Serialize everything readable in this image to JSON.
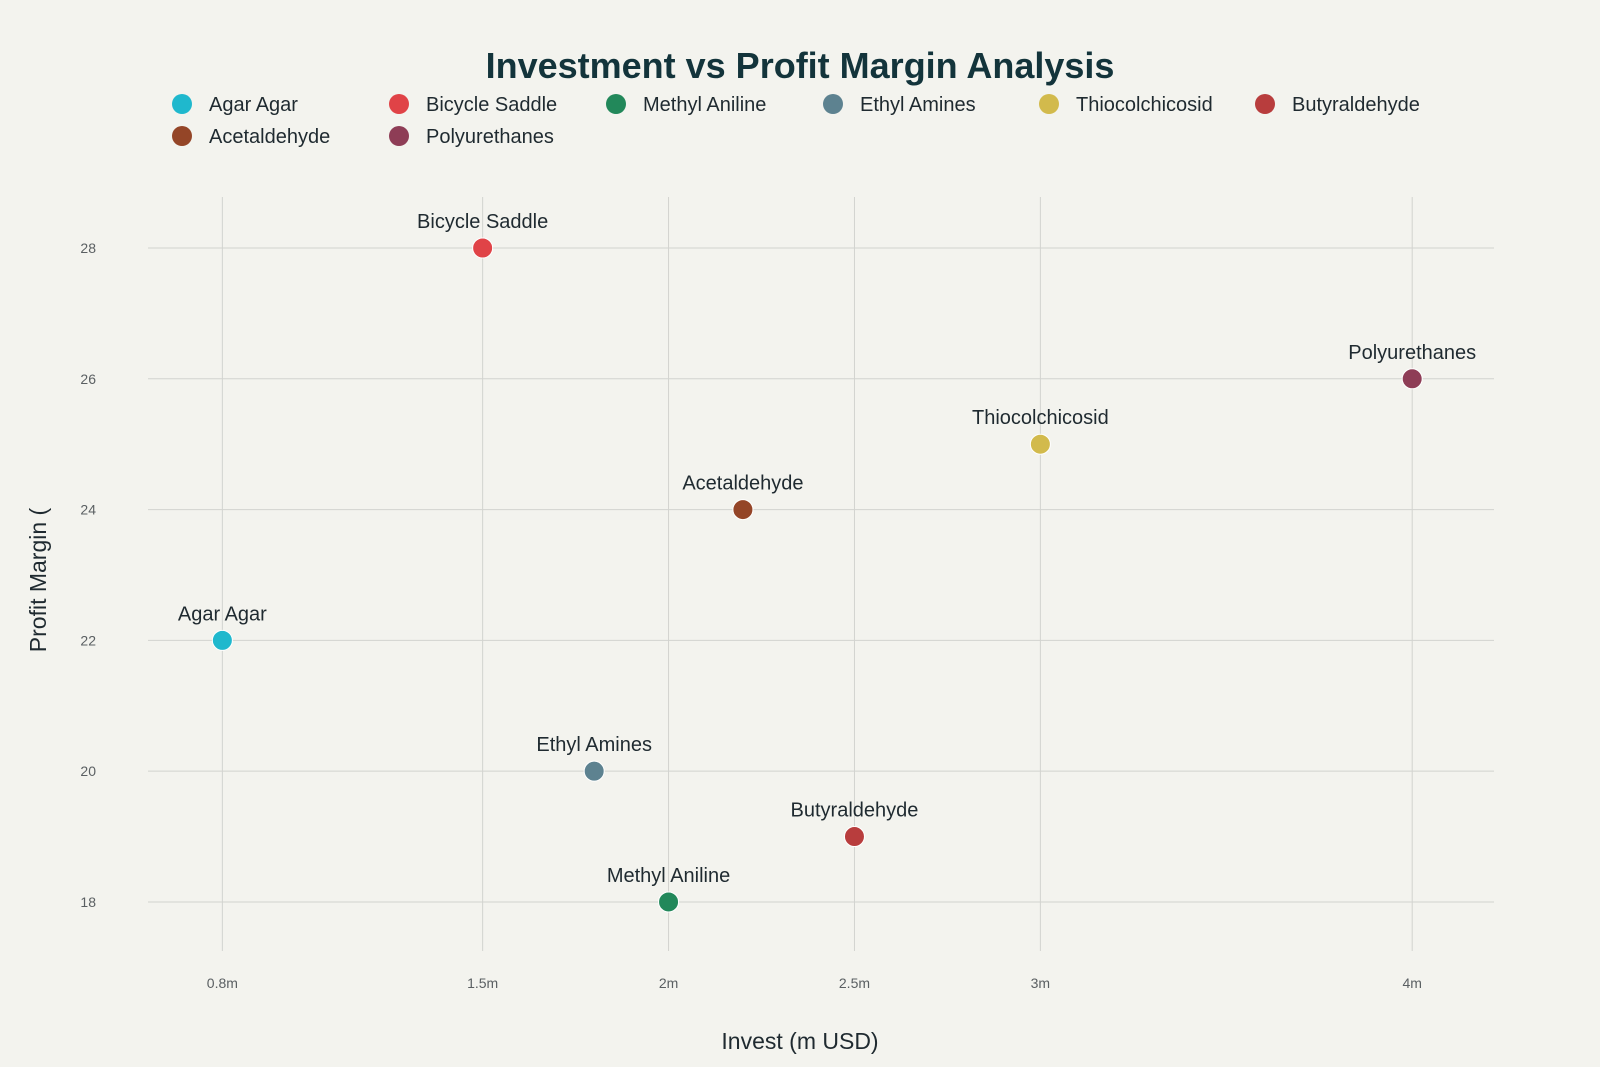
{
  "chart_data": {
    "type": "scatter",
    "title": "Investment vs Profit Margin Analysis",
    "xlabel": "Invest (m USD)",
    "ylabel": "Profit Margin (",
    "x_ticks": [
      {
        "value": 0.8,
        "label": "0.8m"
      },
      {
        "value": 1.5,
        "label": "1.5m"
      },
      {
        "value": 2,
        "label": "2m"
      },
      {
        "value": 2.5,
        "label": "2.5m"
      },
      {
        "value": 3,
        "label": "3m"
      },
      {
        "value": 4,
        "label": "4m"
      }
    ],
    "y_ticks": [
      {
        "value": 18,
        "label": "18"
      },
      {
        "value": 20,
        "label": "20"
      },
      {
        "value": 22,
        "label": "22"
      },
      {
        "value": 24,
        "label": "24"
      },
      {
        "value": 26,
        "label": "26"
      },
      {
        "value": 28,
        "label": "28"
      }
    ],
    "xlim": [
      0.6,
      4.22
    ],
    "ylim": [
      17.25,
      28.78
    ],
    "grid": true,
    "legend_position": "top",
    "series": [
      {
        "name": "Agar Agar",
        "x": 0.8,
        "y": 22,
        "color": "#1fb8cd"
      },
      {
        "name": "Bicycle Saddle",
        "x": 1.5,
        "y": 28,
        "color": "#e04347"
      },
      {
        "name": "Methyl Aniline",
        "x": 2.0,
        "y": 18,
        "color": "#22885a"
      },
      {
        "name": "Ethyl Amines",
        "x": 1.8,
        "y": 20,
        "color": "#5d8290"
      },
      {
        "name": "Thiocolchicosid",
        "x": 3.0,
        "y": 25,
        "color": "#d2ba4c"
      },
      {
        "name": "Butyraldehyde",
        "x": 2.5,
        "y": 19,
        "color": "#b83d3d"
      },
      {
        "name": "Acetaldehyde",
        "x": 2.2,
        "y": 24,
        "color": "#944527"
      },
      {
        "name": "Polyurethanes",
        "x": 4.0,
        "y": 26,
        "color": "#8e3d56"
      }
    ]
  }
}
